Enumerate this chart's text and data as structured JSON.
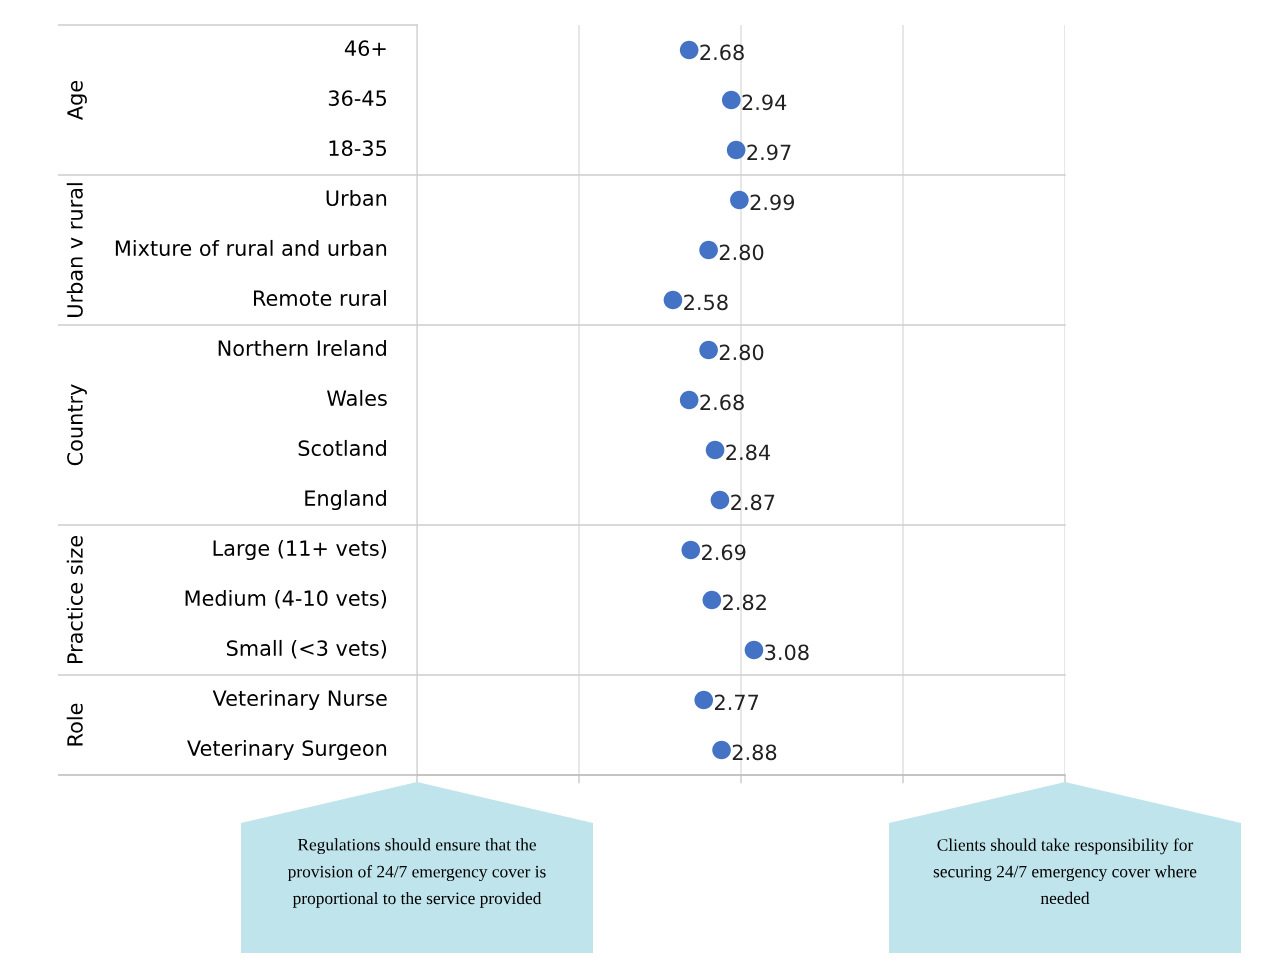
{
  "chart_data": {
    "type": "scatter",
    "orientation": "horizontal",
    "categories": [
      "46+",
      "36-45",
      "18-35",
      "Urban",
      "Mixture of rural and urban",
      "Remote rural",
      "Northern Ireland",
      "Wales",
      "Scotland",
      "England",
      "Large (11+ vets)",
      "Medium (4-10 vets)",
      "Small (<3 vets)",
      "Veterinary Nurse",
      "Veterinary Surgeon"
    ],
    "series": [
      {
        "color": "#4472c4",
        "values": [
          2.68,
          2.94,
          2.97,
          2.99,
          2.8,
          2.58,
          2.8,
          2.68,
          2.84,
          2.87,
          2.69,
          2.82,
          3.08,
          2.77,
          2.88
        ],
        "value_labels": [
          "2.68",
          "2.94",
          "2.97",
          "2.99",
          "2.80",
          "2.58",
          "2.80",
          "2.68",
          "2.84",
          "2.87",
          "2.69",
          "2.82",
          "3.08",
          "2.77",
          "2.88"
        ]
      }
    ],
    "xlim": [
      1,
      5
    ],
    "xticks": [
      {
        "value": 1,
        "label": null
      },
      {
        "value": 2,
        "label": null
      },
      {
        "value": 3,
        "label": null
      },
      {
        "value": 4,
        "label": null
      },
      {
        "value": 5,
        "label": null
      }
    ],
    "grid": "x",
    "marker": "circle",
    "annotations": [
      "Age",
      "Urban v rural",
      "Country",
      "Practice size",
      "Role",
      "Regulations should ensure that the provision of 24/7 emergency cover is proportional to the service provided",
      "Clients should take responsibility for securing 24/7 emergency cover where needed"
    ]
  }
}
